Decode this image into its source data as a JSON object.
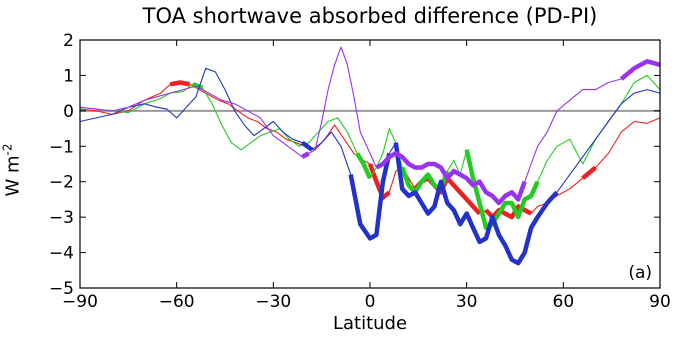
{
  "chart_data": {
    "type": "line",
    "title": "TOA shortwave absorbed difference (PD-PI)",
    "xlabel": "Latitude",
    "ylabel_base": "W m",
    "ylabel_exp": "-2",
    "panel_label": "(a)",
    "xlim": [
      -90,
      90
    ],
    "ylim": [
      -5,
      2
    ],
    "xticks": [
      -90,
      -60,
      -30,
      0,
      30,
      60,
      90
    ],
    "yticks": [
      -5,
      -4,
      -3,
      -2,
      -1,
      0,
      1,
      2
    ],
    "xtick_labels": [
      "−90",
      "−60",
      "−30",
      "0",
      "30",
      "60",
      "90"
    ],
    "ytick_labels": [
      "−5",
      "−4",
      "−3",
      "−2",
      "−1",
      "0",
      "1",
      "2"
    ],
    "zero_line_color": "#999999",
    "series": [
      {
        "color": "#ee2020",
        "x": [
          -90,
          -85,
          -80,
          -75,
          -70,
          -65,
          -62,
          -59,
          -56,
          -53,
          -50,
          -47,
          -44,
          -41,
          -38,
          -35,
          -32,
          -29,
          -26,
          -23,
          -20,
          -17,
          -14,
          -11,
          -8,
          -5,
          -2,
          0,
          2,
          4,
          6,
          8,
          10,
          12,
          14,
          16,
          18,
          20,
          22,
          24,
          26,
          28,
          30,
          32,
          34,
          36,
          38,
          40,
          42,
          44,
          46,
          48,
          50,
          52,
          55,
          58,
          62,
          66,
          70,
          74,
          78,
          82,
          86,
          90
        ],
        "y": [
          0.05,
          0.0,
          -0.1,
          0.0,
          0.3,
          0.5,
          0.75,
          0.8,
          0.75,
          0.6,
          0.45,
          0.3,
          0.2,
          0.0,
          -0.2,
          -0.3,
          -0.5,
          -0.6,
          -0.8,
          -0.9,
          -1.0,
          -1.1,
          -0.8,
          -0.4,
          -0.8,
          -1.2,
          -1.4,
          -1.5,
          -2.0,
          -2.45,
          -2.3,
          -1.7,
          -1.6,
          -1.9,
          -2.2,
          -2.0,
          -1.9,
          -2.1,
          -2.3,
          -1.9,
          -2.1,
          -2.3,
          -2.5,
          -2.7,
          -2.9,
          -2.8,
          -3.0,
          -2.8,
          -2.9,
          -3.0,
          -2.7,
          -2.8,
          -2.9,
          -2.7,
          -2.6,
          -2.4,
          -2.2,
          -1.9,
          -1.6,
          -1.2,
          -0.6,
          -0.3,
          -0.35,
          -0.2
        ],
        "bold_x": [
          [
            -62,
            -56
          ],
          [
            0,
            6
          ],
          [
            14,
            34
          ],
          [
            36,
            50
          ],
          [
            66,
            70
          ]
        ]
      },
      {
        "color": "#22cc22",
        "x": [
          -90,
          -85,
          -80,
          -75,
          -70,
          -65,
          -62,
          -58,
          -55,
          -52,
          -49,
          -46,
          -43,
          -40,
          -37,
          -34,
          -31,
          -28,
          -25,
          -22,
          -19,
          -16,
          -13,
          -10,
          -7,
          -4,
          -2,
          0,
          2,
          4,
          6,
          8,
          10,
          12,
          14,
          16,
          18,
          20,
          22,
          24,
          26,
          28,
          30,
          32,
          34,
          36,
          38,
          40,
          42,
          44,
          46,
          48,
          50,
          52,
          55,
          58,
          62,
          66,
          70,
          74,
          78,
          82,
          86,
          90
        ],
        "y": [
          0.1,
          0.05,
          0.0,
          -0.05,
          0.2,
          0.35,
          0.5,
          0.55,
          0.75,
          0.65,
          0.2,
          -0.4,
          -0.9,
          -1.1,
          -0.9,
          -0.7,
          -0.6,
          -0.5,
          -0.8,
          -1.0,
          -0.9,
          -0.6,
          -0.3,
          -0.2,
          -0.6,
          -1.2,
          -1.5,
          -1.9,
          -1.6,
          -1.2,
          -0.5,
          -0.9,
          -1.6,
          -2.1,
          -2.3,
          -2.0,
          -1.8,
          -2.1,
          -2.2,
          -1.7,
          -1.4,
          -1.8,
          -1.1,
          -1.9,
          -2.6,
          -3.3,
          -3.2,
          -2.9,
          -2.6,
          -2.6,
          -3.0,
          -2.5,
          -2.4,
          -2.0,
          -1.4,
          -1.0,
          -0.8,
          -1.5,
          -0.8,
          -0.3,
          0.2,
          0.8,
          1.0,
          0.6
        ],
        "bold_x": [
          [
            -55,
            -52
          ],
          [
            -4,
            0
          ],
          [
            10,
            24
          ],
          [
            30,
            52
          ],
          [
            80,
            84
          ]
        ]
      },
      {
        "color": "#2233cc",
        "x": [
          -90,
          -85,
          -80,
          -75,
          -70,
          -66,
          -63,
          -60,
          -57,
          -54,
          -51,
          -48,
          -45,
          -42,
          -39,
          -36,
          -33,
          -30,
          -27,
          -24,
          -21,
          -18,
          -15,
          -12,
          -9,
          -6,
          -3,
          0,
          2,
          4,
          6,
          8,
          10,
          12,
          14,
          16,
          18,
          20,
          22,
          24,
          26,
          28,
          30,
          32,
          34,
          36,
          38,
          40,
          42,
          44,
          46,
          48,
          50,
          52,
          55,
          58,
          62,
          66,
          70,
          74,
          78,
          82,
          86,
          90
        ],
        "y": [
          -0.3,
          -0.2,
          -0.1,
          0.1,
          0.2,
          0.1,
          0.05,
          -0.2,
          0.1,
          0.4,
          1.2,
          1.1,
          0.6,
          0.0,
          -0.4,
          -0.7,
          -0.5,
          -0.3,
          -0.6,
          -0.8,
          -0.9,
          -1.1,
          -0.9,
          -0.6,
          -1.0,
          -1.8,
          -3.2,
          -3.6,
          -3.5,
          -2.0,
          -1.2,
          -0.9,
          -2.2,
          -2.4,
          -2.3,
          -2.6,
          -2.9,
          -2.7,
          -2.0,
          -2.6,
          -2.8,
          -3.2,
          -2.9,
          -3.3,
          -3.7,
          -3.6,
          -3.0,
          -3.5,
          -3.8,
          -4.2,
          -4.3,
          -4.0,
          -3.3,
          -3.0,
          -2.6,
          -2.3,
          -1.8,
          -1.3,
          -0.8,
          -0.3,
          0.2,
          0.5,
          0.6,
          0.5
        ],
        "bold_x": [
          [
            -21,
            -18
          ],
          [
            -8,
            6
          ],
          [
            8,
            60
          ]
        ]
      },
      {
        "color": "#9933ee",
        "x": [
          -90,
          -85,
          -80,
          -75,
          -70,
          -66,
          -62,
          -58,
          -54,
          -50,
          -46,
          -42,
          -38,
          -34,
          -30,
          -27,
          -24,
          -21,
          -19,
          -17,
          -15,
          -13,
          -11,
          -9,
          -7,
          -5,
          -3,
          0,
          2,
          4,
          6,
          8,
          10,
          12,
          14,
          16,
          18,
          20,
          22,
          24,
          26,
          28,
          30,
          32,
          34,
          36,
          38,
          40,
          42,
          44,
          46,
          48,
          50,
          52,
          55,
          58,
          62,
          66,
          70,
          74,
          78,
          82,
          86,
          90
        ],
        "y": [
          0.1,
          0.05,
          0.0,
          0.1,
          0.3,
          0.4,
          0.5,
          0.6,
          0.7,
          0.5,
          0.3,
          0.2,
          0.0,
          -0.2,
          -0.7,
          -0.9,
          -1.1,
          -1.3,
          -1.2,
          -1.1,
          -0.3,
          0.6,
          1.3,
          1.8,
          1.3,
          0.4,
          -0.6,
          -1.2,
          -1.6,
          -1.5,
          -1.3,
          -1.2,
          -1.3,
          -1.5,
          -1.6,
          -1.6,
          -1.5,
          -1.5,
          -1.6,
          -1.9,
          -1.7,
          -1.8,
          -1.9,
          -2.1,
          -2.0,
          -2.3,
          -2.4,
          -2.6,
          -2.4,
          -2.3,
          -2.5,
          -2.0,
          -1.5,
          -1.0,
          -0.6,
          0.0,
          0.3,
          0.6,
          0.6,
          0.8,
          0.9,
          1.2,
          1.4,
          1.3
        ],
        "bold_x": [
          [
            -22,
            -19
          ],
          [
            2,
            48
          ],
          [
            75,
            90
          ]
        ]
      }
    ]
  }
}
